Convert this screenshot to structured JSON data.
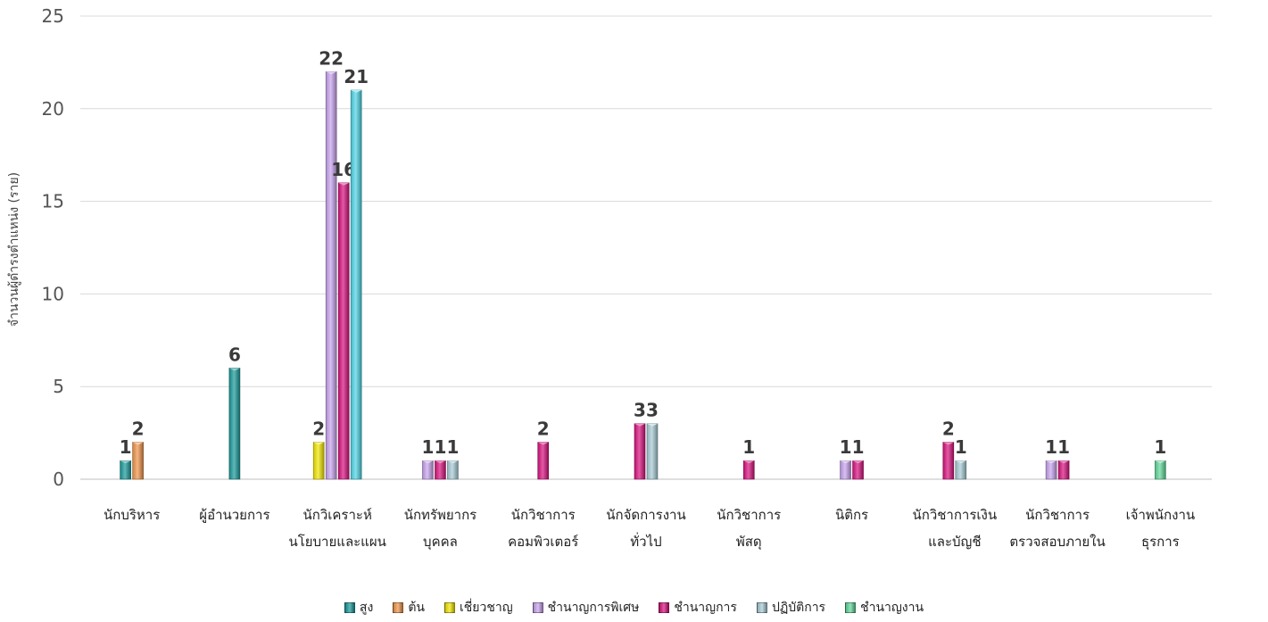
{
  "chart_data": {
    "type": "bar",
    "ylabel": "จำนวนผู้ดำรงตำแหน่ง (ราย)",
    "ylim": [
      0,
      25
    ],
    "yticks": [
      0,
      5,
      10,
      15,
      20,
      25
    ],
    "grid": true,
    "legend_position": "bottom",
    "categories": [
      [
        "นักบริหาร"
      ],
      [
        "ผู้อำนวยการ"
      ],
      [
        "นักวิเคราะห์",
        "นโยบายและแผน"
      ],
      [
        "นักทรัพยากร",
        "บุคคล"
      ],
      [
        "นักวิชาการ",
        "คอมพิวเตอร์"
      ],
      [
        "นักจัดการงาน",
        "ทั่วไป"
      ],
      [
        "นักวิชาการ",
        "พัสดุ"
      ],
      [
        "นิติกร"
      ],
      [
        "นักวิชาการเงิน",
        "และบัญชี"
      ],
      [
        "นักวิชาการ",
        "ตรวจสอบภายใน"
      ],
      [
        "เจ้าพนักงาน",
        "ธุรการ"
      ]
    ],
    "series": [
      {
        "name": "สูง",
        "color": "#1a9a9a",
        "values": [
          1,
          6,
          null,
          null,
          null,
          null,
          null,
          null,
          null,
          null,
          null
        ]
      },
      {
        "name": "ต้น",
        "color": "#f0954a",
        "values": [
          2,
          null,
          null,
          null,
          null,
          null,
          null,
          null,
          null,
          null,
          null
        ]
      },
      {
        "name": "เชี่ยวชาญ",
        "color": "#f2e600",
        "values": [
          null,
          null,
          2,
          null,
          null,
          null,
          null,
          null,
          null,
          null,
          null
        ]
      },
      {
        "name": "ชำนาญการพิเศษ",
        "color": "#c9a3ef",
        "values": [
          null,
          null,
          22,
          1,
          null,
          null,
          null,
          1,
          null,
          1,
          null
        ]
      },
      {
        "name": "ชำนาญการ",
        "color": "#d8127e",
        "values": [
          null,
          null,
          16,
          1,
          2,
          3,
          1,
          1,
          2,
          1,
          null
        ]
      },
      {
        "name": "ปฏิบัติการ",
        "color": "#a8cbd6",
        "values": [
          null,
          null,
          null,
          1,
          null,
          3,
          null,
          null,
          1,
          null,
          null
        ]
      },
      {
        "name": "ชำนาญงาน",
        "color": "#62d99a",
        "values": [
          null,
          null,
          null,
          null,
          null,
          null,
          null,
          null,
          null,
          null,
          1
        ]
      }
    ],
    "extra_series": [
      {
        "color": "#4fd6e6",
        "values": [
          null,
          null,
          21,
          null,
          null,
          null,
          null,
          null,
          null,
          null,
          null
        ]
      }
    ]
  }
}
